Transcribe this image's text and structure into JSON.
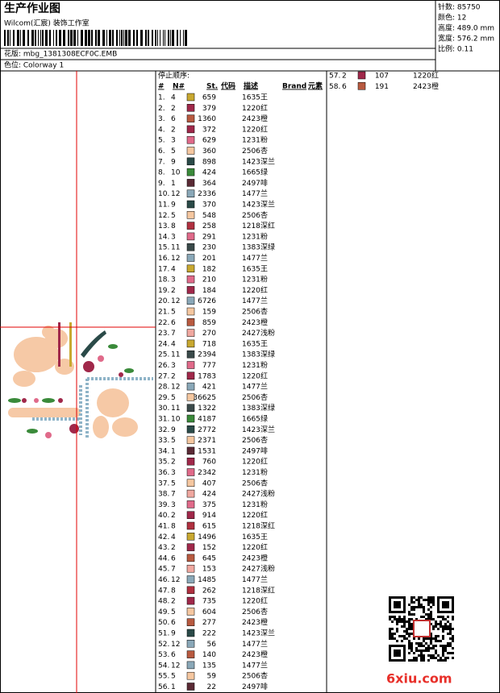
{
  "header": {
    "title": "生产作业图",
    "studio": "Wilcom(汇宸) 装饰工作室",
    "file": "花版: mbg_1381308ECF0C.EMB",
    "colorway": "色位: Colorway 1"
  },
  "info": [
    "针数: 85750",
    "颜色: 12",
    "高度: 489.0 mm",
    "宽度: 576.2 mm",
    "比例: 0.11"
  ],
  "table": {
    "caption": "停止顺序:",
    "columns": [
      "#",
      "N#",
      "St.",
      "代码",
      "描述",
      "Brand",
      "元素"
    ],
    "rows": [
      [
        "1.",
        "4",
        "659",
        "1635",
        "王"
      ],
      [
        "2.",
        "2",
        "379",
        "1220",
        "红"
      ],
      [
        "3.",
        "6",
        "1360",
        "2423",
        "橙"
      ],
      [
        "4.",
        "2",
        "372",
        "1220",
        "红"
      ],
      [
        "5.",
        "3",
        "629",
        "1231",
        "粉"
      ],
      [
        "6.",
        "5",
        "360",
        "2506",
        "杏"
      ],
      [
        "7.",
        "9",
        "898",
        "1423",
        "深兰"
      ],
      [
        "8.",
        "10",
        "424",
        "1665",
        "绿"
      ],
      [
        "9.",
        "1",
        "364",
        "2497",
        "啡"
      ],
      [
        "10.",
        "12",
        "2336",
        "1477",
        "兰"
      ],
      [
        "11.",
        "9",
        "370",
        "1423",
        "深兰"
      ],
      [
        "12.",
        "5",
        "548",
        "2506",
        "杏"
      ],
      [
        "13.",
        "8",
        "258",
        "1218",
        "深红"
      ],
      [
        "14.",
        "3",
        "291",
        "1231",
        "粉"
      ],
      [
        "15.",
        "11",
        "230",
        "1383",
        "深绿"
      ],
      [
        "16.",
        "12",
        "201",
        "1477",
        "兰"
      ],
      [
        "17.",
        "4",
        "182",
        "1635",
        "王"
      ],
      [
        "18.",
        "3",
        "210",
        "1231",
        "粉"
      ],
      [
        "19.",
        "2",
        "184",
        "1220",
        "红"
      ],
      [
        "20.",
        "12",
        "6726",
        "1477",
        "兰"
      ],
      [
        "21.",
        "5",
        "159",
        "2506",
        "杏"
      ],
      [
        "22.",
        "6",
        "859",
        "2423",
        "橙"
      ],
      [
        "23.",
        "7",
        "270",
        "2427",
        "浅粉"
      ],
      [
        "24.",
        "4",
        "718",
        "1635",
        "王"
      ],
      [
        "25.",
        "11",
        "2394",
        "1383",
        "深绿"
      ],
      [
        "26.",
        "3",
        "777",
        "1231",
        "粉"
      ],
      [
        "27.",
        "2",
        "1783",
        "1220",
        "红"
      ],
      [
        "28.",
        "12",
        "421",
        "1477",
        "兰"
      ],
      [
        "29.",
        "5",
        "36625",
        "2506",
        "杏"
      ],
      [
        "30.",
        "11",
        "1322",
        "1383",
        "深绿"
      ],
      [
        "31.",
        "10",
        "4187",
        "1665",
        "绿"
      ],
      [
        "32.",
        "9",
        "2772",
        "1423",
        "深兰"
      ],
      [
        "33.",
        "5",
        "2371",
        "2506",
        "杏"
      ],
      [
        "34.",
        "1",
        "1531",
        "2497",
        "啡"
      ],
      [
        "35.",
        "2",
        "760",
        "1220",
        "红"
      ],
      [
        "36.",
        "3",
        "2342",
        "1231",
        "粉"
      ],
      [
        "37.",
        "5",
        "407",
        "2506",
        "杏"
      ],
      [
        "38.",
        "7",
        "424",
        "2427",
        "浅粉"
      ],
      [
        "39.",
        "3",
        "375",
        "1231",
        "粉"
      ],
      [
        "40.",
        "2",
        "914",
        "1220",
        "红"
      ],
      [
        "41.",
        "8",
        "615",
        "1218",
        "深红"
      ],
      [
        "42.",
        "4",
        "1496",
        "1635",
        "王"
      ],
      [
        "43.",
        "2",
        "152",
        "1220",
        "红"
      ],
      [
        "44.",
        "6",
        "645",
        "2423",
        "橙"
      ],
      [
        "45.",
        "7",
        "153",
        "2427",
        "浅粉"
      ],
      [
        "46.",
        "12",
        "1485",
        "1477",
        "兰"
      ],
      [
        "47.",
        "8",
        "262",
        "1218",
        "深红"
      ],
      [
        "48.",
        "2",
        "735",
        "1220",
        "红"
      ],
      [
        "49.",
        "5",
        "604",
        "2506",
        "杏"
      ],
      [
        "50.",
        "6",
        "277",
        "2423",
        "橙"
      ],
      [
        "51.",
        "9",
        "222",
        "1423",
        "深兰"
      ],
      [
        "52.",
        "12",
        "56",
        "1477",
        "兰"
      ],
      [
        "53.",
        "6",
        "140",
        "2423",
        "橙"
      ],
      [
        "54.",
        "12",
        "135",
        "1477",
        "兰"
      ],
      [
        "55.",
        "5",
        "59",
        "2506",
        "杏"
      ],
      [
        "56.",
        "1",
        "22",
        "2497",
        "啡"
      ],
      [
        "57.",
        "2",
        "107",
        "1220",
        "红"
      ],
      [
        "58.",
        "6",
        "191",
        "2423",
        "橙"
      ]
    ]
  },
  "watermark": "6xiu.com"
}
